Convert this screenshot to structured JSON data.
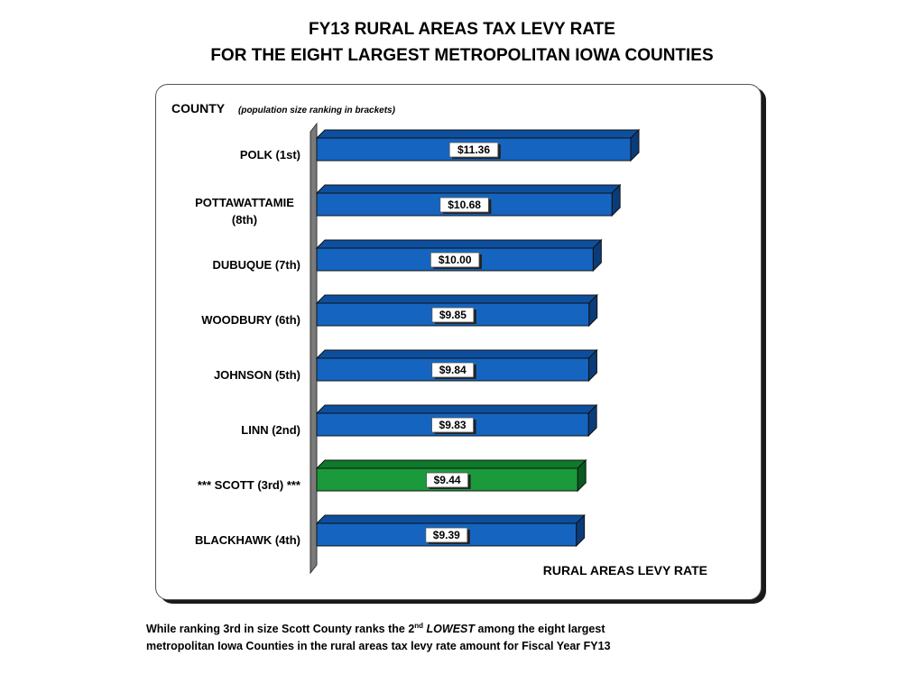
{
  "title_line1": "FY13 RURAL AREAS TAX LEVY RATE",
  "title_line2": "FOR THE EIGHT LARGEST METROPOLITAN IOWA COUNTIES",
  "footer": {
    "part1": "While ranking 3rd in size Scott County ranks the 2",
    "sup": "nd",
    "emphasis": "LOWEST",
    "part2": " among the eight largest",
    "line2": "metropolitan Iowa Counties in the rural areas tax levy rate amount for Fiscal Year FY13"
  },
  "colors": {
    "bar_default": "#1565c0",
    "bar_highlight": "#1a9a3a",
    "axis_wall": "#7a7a7a"
  },
  "chart_data": {
    "type": "bar",
    "orientation": "horizontal",
    "title": "",
    "ylabel_main": "COUNTY",
    "ylabel_note": "(population size ranking in brackets)",
    "xlabel": "RURAL AREAS LEVY RATE",
    "xlim": [
      0,
      11.36
    ],
    "grid": false,
    "legend": "none",
    "categories": [
      [
        "POLK (1st)"
      ],
      [
        "POTTAWATTAMIE",
        "(8th)"
      ],
      [
        "DUBUQUE (7th)"
      ],
      [
        "WOODBURY (6th)"
      ],
      [
        "JOHNSON (5th)"
      ],
      [
        "LINN (2nd)"
      ],
      [
        "*** SCOTT (3rd) ***"
      ],
      [
        "BLACKHAWK (4th)"
      ]
    ],
    "values": [
      11.36,
      10.68,
      10.0,
      9.85,
      9.84,
      9.83,
      9.44,
      9.39
    ],
    "data_labels": [
      "$11.36",
      "$10.68",
      "$10.00",
      "$9.85",
      "$9.84",
      "$9.83",
      "$9.44",
      "$9.39"
    ],
    "highlight_index": 6
  }
}
